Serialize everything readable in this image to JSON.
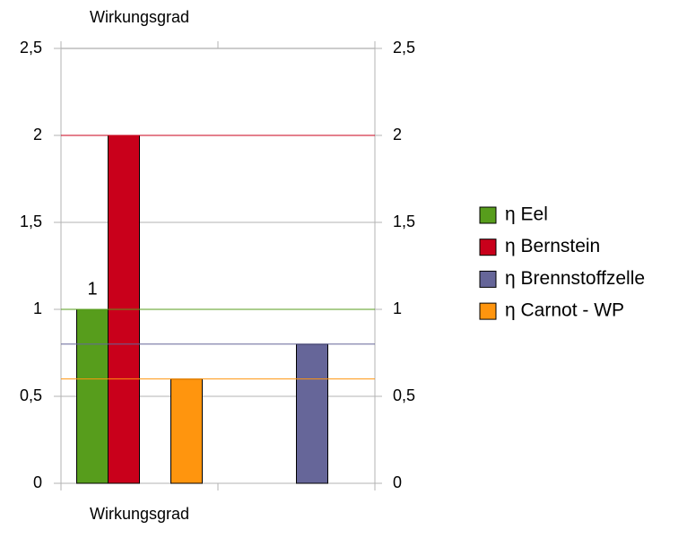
{
  "chart_data": {
    "type": "bar",
    "categories": [
      "Wirkungsgrad",
      null
    ],
    "secondary_x": true,
    "series": [
      {
        "name": "η Eel",
        "color": "#579d1c",
        "values": [
          1,
          null
        ],
        "data_labels": true
      },
      {
        "name": "η Bernstein",
        "color": "#c9001b",
        "values": [
          2,
          null
        ]
      },
      {
        "name": "η Brennstoffzelle",
        "color": "#666699",
        "values": [
          null,
          0.8
        ]
      },
      {
        "name": "η Carnot - WP",
        "color": "#ff950e",
        "values": [
          0.6,
          null
        ]
      }
    ],
    "mean_lines": true,
    "ylim": [
      0,
      2.5
    ],
    "yticks": [
      0,
      {
        "value": 0.5,
        "label": "0,5"
      },
      1,
      {
        "value": 1.5,
        "label": "1,5"
      },
      2,
      {
        "value": 2.5,
        "label": "2,5"
      }
    ],
    "y2lim": [
      0,
      2.5
    ],
    "y2ticks": [
      0,
      {
        "value": 0.5,
        "label": "0,5"
      },
      1,
      {
        "value": 1.5,
        "label": "1,5"
      },
      2,
      {
        "value": 2.5,
        "label": "2,5"
      }
    ],
    "grid": true,
    "legend": "right"
  }
}
